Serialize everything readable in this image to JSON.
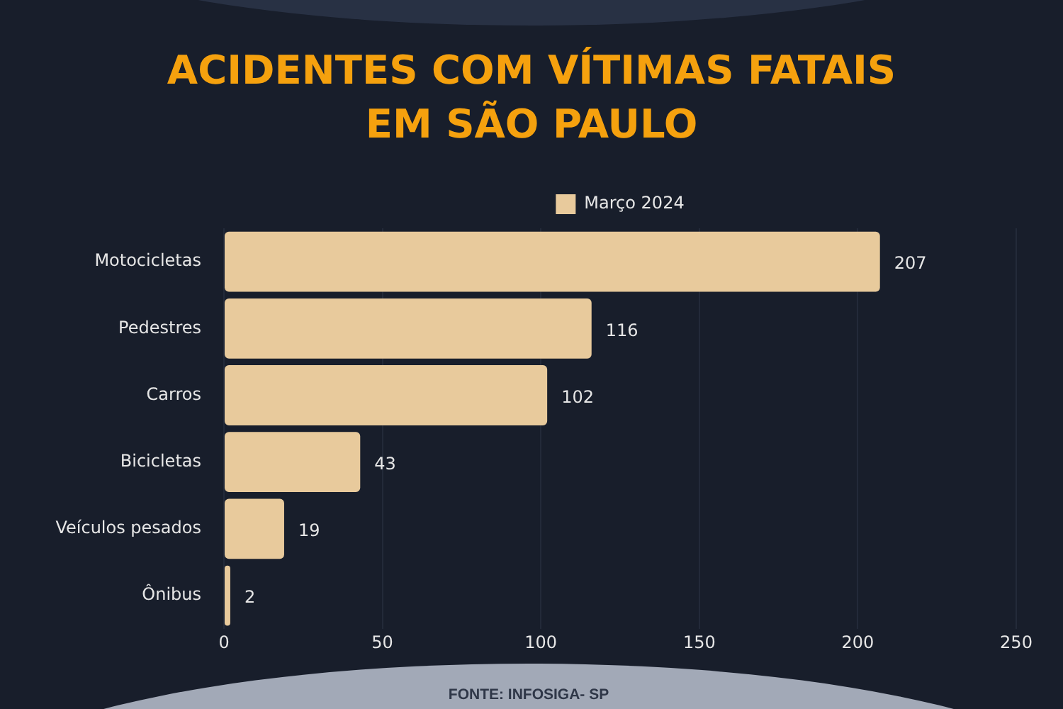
{
  "chart_data": {
    "type": "bar",
    "orientation": "horizontal",
    "title": "ACIDENTES COM VÍTIMAS FATAIS EM SÃO PAULO",
    "categories": [
      "Motocicletas",
      "Pedestres",
      "Carros",
      "Bicicletas",
      "Veículos pesados",
      "Ônibus"
    ],
    "series": [
      {
        "name": "Março 2024",
        "color": "#e8ca9c",
        "values": [
          207,
          116,
          102,
          43,
          19,
          2
        ]
      }
    ],
    "xlim": [
      0,
      250
    ],
    "xticks": [
      0,
      50,
      100,
      150,
      200,
      250
    ],
    "grid": "x",
    "legend": "top",
    "data_labels": true,
    "annotations": [
      "FONTE: INFOSIGA- SP"
    ]
  }
}
